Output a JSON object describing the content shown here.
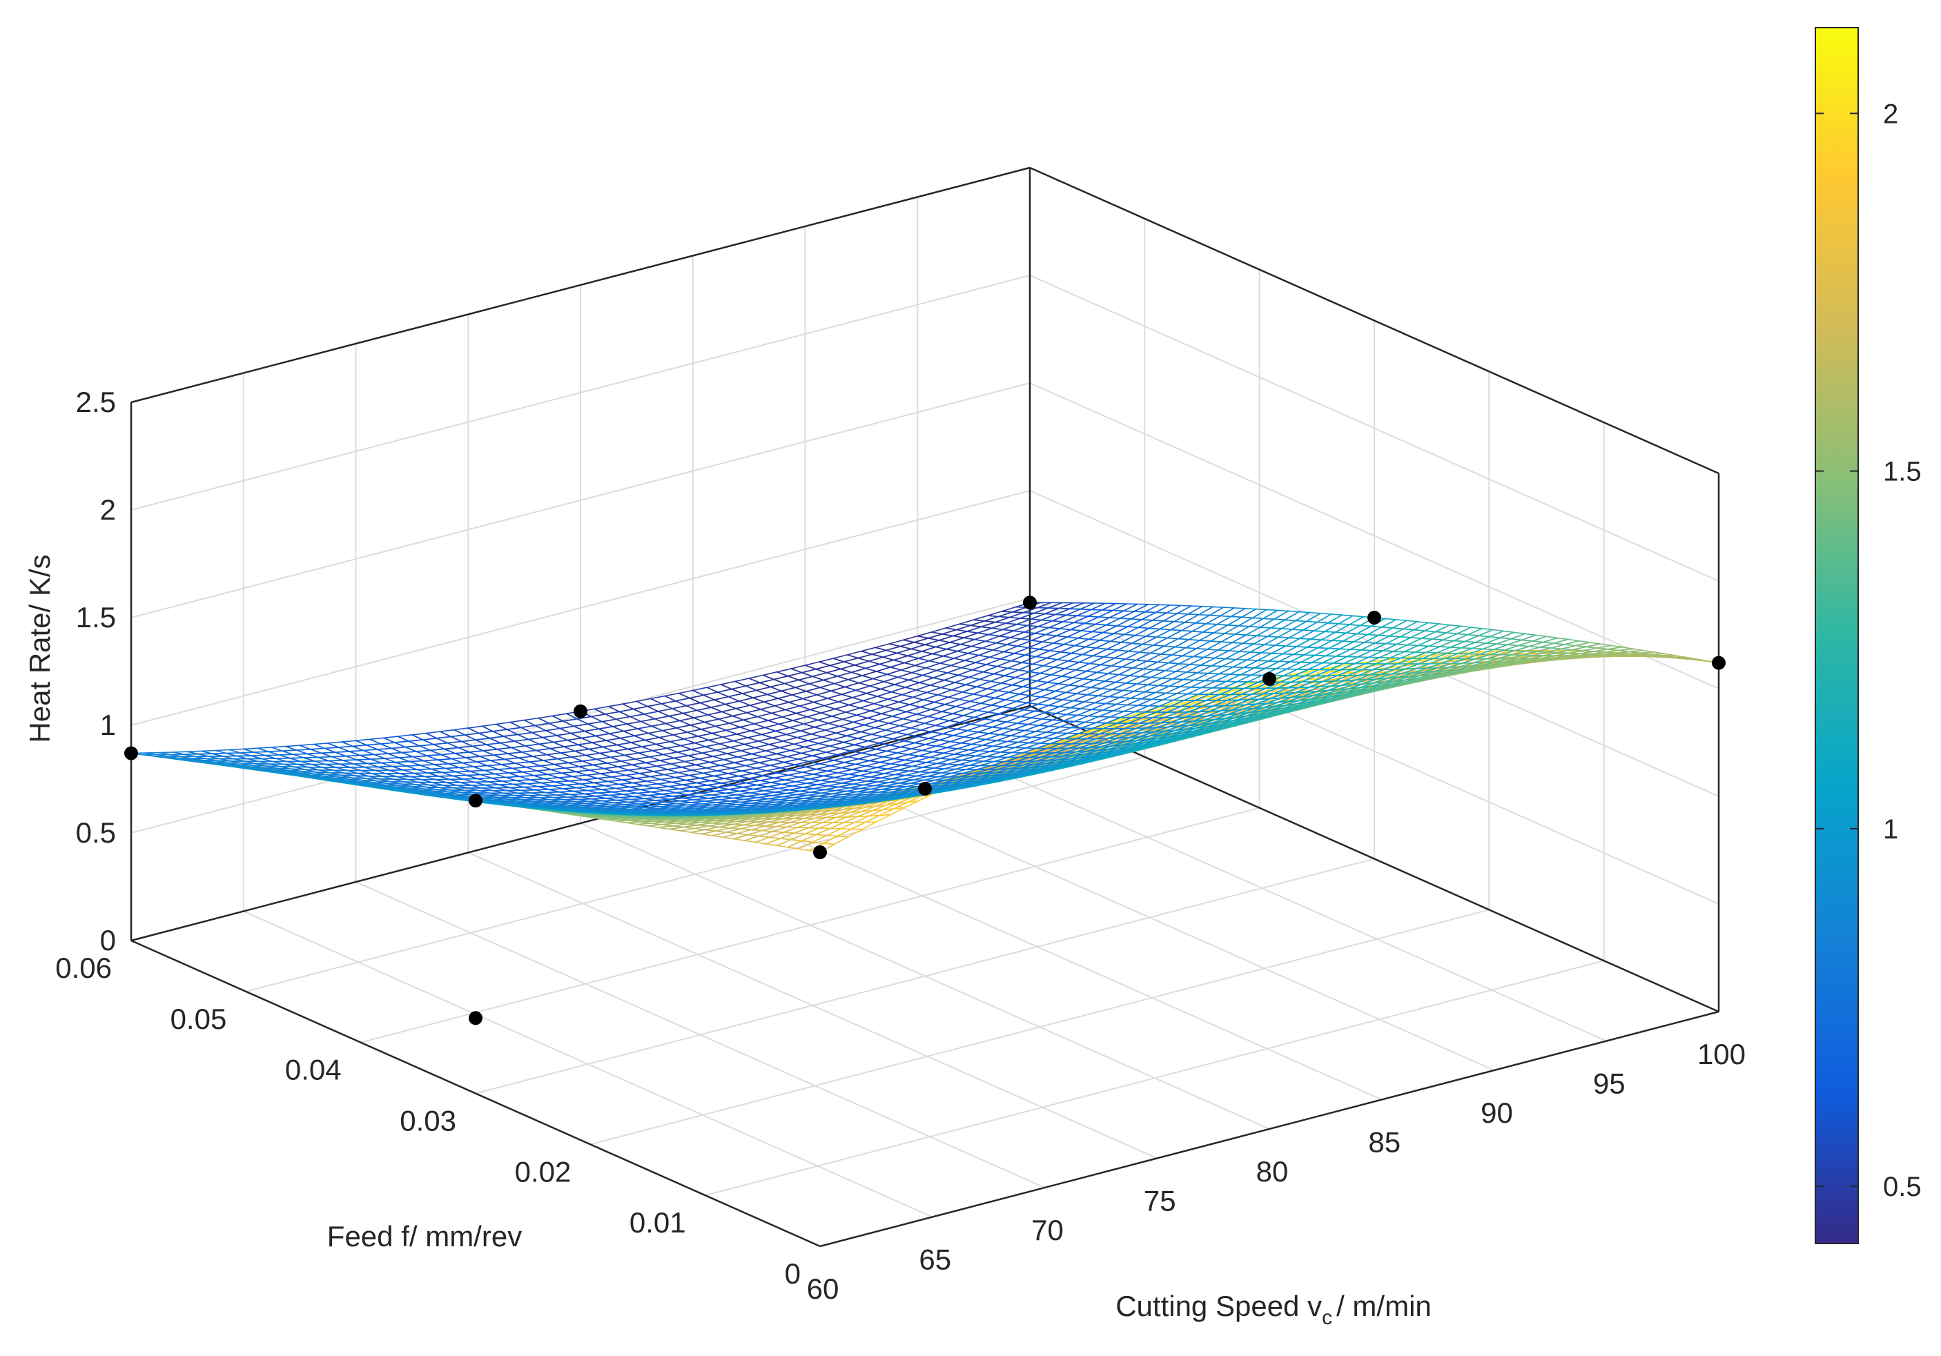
{
  "chart_data": {
    "type": "surface3d",
    "xlabel": "Cutting Speed v_c / m/min",
    "xlabel_main": "Cutting Speed v",
    "xlabel_sub": "c",
    "xlabel_tail": "/ m/min",
    "ylabel": "Feed f/ mm/rev",
    "zlabel": "Heat Rate/ K/s",
    "xlim": [
      60,
      100
    ],
    "ylim": [
      0,
      0.06
    ],
    "zlim": [
      0,
      2.5
    ],
    "xticks": [
      60,
      65,
      70,
      75,
      80,
      85,
      90,
      95,
      100
    ],
    "xtick_labels": [
      "60",
      "65",
      "70",
      "75",
      "80",
      "85",
      "90",
      "95",
      "100"
    ],
    "yticks": [
      0,
      0.01,
      0.02,
      0.03,
      0.04,
      0.05,
      0.06
    ],
    "ytick_labels": [
      "0",
      "0.01",
      "0.02",
      "0.03",
      "0.04",
      "0.05",
      "0.06"
    ],
    "zticks": [
      0,
      0.5,
      1,
      1.5,
      2,
      2.5
    ],
    "ztick_labels": [
      "0",
      "0.5",
      "1",
      "1.5",
      "2",
      "2.5"
    ],
    "grid": true,
    "colormap": "parula",
    "colorbar": {
      "position": "right",
      "range": [
        0.42,
        2.12
      ],
      "ticks": [
        0.5,
        1,
        1.5,
        2
      ],
      "tick_labels": [
        "0.5",
        "1",
        "1.5",
        "2"
      ]
    },
    "measured_points": [
      {
        "speed": 60,
        "feed": 0.06,
        "heat_rate": 0.87
      },
      {
        "speed": 60,
        "feed": 0.03,
        "heat_rate": 0.35
      },
      {
        "speed": 60,
        "feed": 0.03,
        "heat_rate": 1.36
      },
      {
        "speed": 60,
        "feed": 0.0,
        "heat_rate": 1.83
      },
      {
        "speed": 80,
        "feed": 0.06,
        "heat_rate": 0.52
      },
      {
        "speed": 80,
        "feed": 0.03,
        "heat_rate": 0.87
      },
      {
        "speed": 80,
        "feed": 0.0,
        "heat_rate": 2.09
      },
      {
        "speed": 100,
        "feed": 0.06,
        "heat_rate": 0.48
      },
      {
        "speed": 100,
        "feed": 0.03,
        "heat_rate": 1.12
      },
      {
        "speed": 100,
        "feed": 0.0,
        "heat_rate": 1.62
      }
    ],
    "series": [
      {
        "values": "interpolated response surface over the measured grid"
      }
    ]
  },
  "colors": {
    "axis": "#262626",
    "grid": "#dcdcdc",
    "marker": "#000000"
  }
}
